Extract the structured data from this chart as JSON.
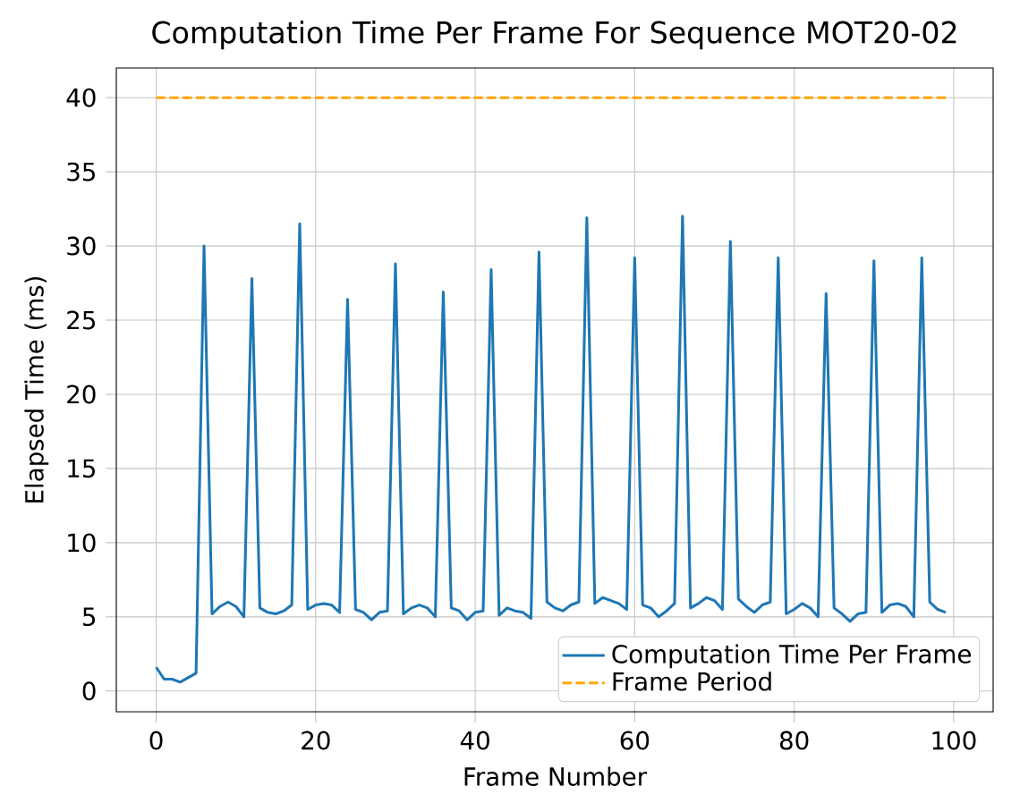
{
  "chart_data": {
    "type": "line",
    "title": "Computation Time Per Frame For Sequence MOT20-02",
    "xlabel": "Frame Number",
    "ylabel": "Elapsed Time (ms)",
    "x": [
      0,
      1,
      2,
      3,
      4,
      5,
      6,
      7,
      8,
      9,
      10,
      11,
      12,
      13,
      14,
      15,
      16,
      17,
      18,
      19,
      20,
      21,
      22,
      23,
      24,
      25,
      26,
      27,
      28,
      29,
      30,
      31,
      32,
      33,
      34,
      35,
      36,
      37,
      38,
      39,
      40,
      41,
      42,
      43,
      44,
      45,
      46,
      47,
      48,
      49,
      50,
      51,
      52,
      53,
      54,
      55,
      56,
      57,
      58,
      59,
      60,
      61,
      62,
      63,
      64,
      65,
      66,
      67,
      68,
      69,
      70,
      71,
      72,
      73,
      74,
      75,
      76,
      77,
      78,
      79,
      80,
      81,
      82,
      83,
      84,
      85,
      86,
      87,
      88,
      89,
      90,
      91,
      92,
      93,
      94,
      95,
      96,
      97,
      98,
      99
    ],
    "series": [
      {
        "name": "Computation Time Per Frame",
        "color": "#1f77b4",
        "line_style": "solid",
        "values": [
          1.6,
          0.8,
          0.8,
          0.6,
          0.9,
          1.2,
          30.0,
          5.2,
          5.7,
          6.0,
          5.7,
          5.0,
          27.8,
          5.6,
          5.3,
          5.2,
          5.4,
          5.8,
          31.5,
          5.5,
          5.8,
          5.9,
          5.8,
          5.3,
          26.4,
          5.5,
          5.3,
          4.8,
          5.3,
          5.4,
          28.8,
          5.2,
          5.6,
          5.8,
          5.6,
          5.0,
          26.9,
          5.6,
          5.4,
          4.8,
          5.3,
          5.4,
          28.4,
          5.1,
          5.6,
          5.4,
          5.3,
          4.9,
          29.6,
          6.0,
          5.6,
          5.4,
          5.8,
          6.0,
          31.9,
          5.9,
          6.3,
          6.1,
          5.9,
          5.5,
          29.2,
          5.8,
          5.6,
          5.0,
          5.4,
          5.9,
          32.0,
          5.6,
          5.9,
          6.3,
          6.1,
          5.5,
          30.3,
          6.2,
          5.7,
          5.3,
          5.8,
          6.0,
          29.2,
          5.2,
          5.5,
          5.9,
          5.6,
          5.0,
          26.8,
          5.6,
          5.2,
          4.7,
          5.2,
          5.3,
          29.0,
          5.3,
          5.8,
          5.9,
          5.7,
          5.0,
          29.2,
          6.0,
          5.5,
          5.3
        ]
      },
      {
        "name": "Frame Period",
        "color": "#ffa500",
        "line_style": "dashed",
        "x": [
          0,
          99
        ],
        "values": [
          40,
          40
        ]
      }
    ],
    "xlim": [
      -5,
      104.95
    ],
    "ylim": [
      -1.4,
      42
    ],
    "xticks": [
      0,
      20,
      40,
      60,
      80,
      100
    ],
    "yticks": [
      0,
      5,
      10,
      15,
      20,
      25,
      30,
      35,
      40
    ],
    "grid": true,
    "legend": "bottom right",
    "marker": "none"
  }
}
